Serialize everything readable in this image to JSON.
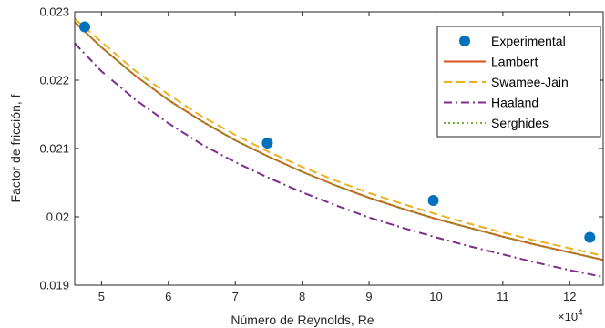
{
  "chart_data": {
    "type": "line",
    "title": "",
    "xlabel": "Número de Reynolds, Re",
    "ylabel": "Factor de fricción, f",
    "x_multiplier_label": "×10",
    "x_multiplier_exp": "4",
    "xlim": [
      4.6,
      12.5
    ],
    "ylim": [
      0.019,
      0.023
    ],
    "x_ticks": [
      5,
      6,
      7,
      8,
      9,
      10,
      11,
      12
    ],
    "y_ticks": [
      0.019,
      0.02,
      0.021,
      0.022,
      0.023
    ],
    "x_tick_labels": [
      "5",
      "6",
      "7",
      "8",
      "9",
      "10",
      "11",
      "12"
    ],
    "y_tick_labels": [
      "0.019",
      "0.02",
      "0.021",
      "0.022",
      "0.023"
    ],
    "grid": false,
    "legend_position": "top-right",
    "experimental": {
      "name": "Experimental",
      "color": "#0072BD",
      "x": [
        4.75,
        7.48,
        9.96,
        12.3
      ],
      "y": [
        0.02278,
        0.02108,
        0.02024,
        0.0197
      ]
    },
    "series": [
      {
        "name": "Lambert",
        "color": "#D95319",
        "dash": "solid",
        "x": [
          4.6,
          5,
          5.5,
          6,
          6.5,
          7,
          7.5,
          8,
          8.5,
          9,
          9.5,
          10,
          10.5,
          11,
          11.5,
          12,
          12.5
        ],
        "y": [
          0.02285,
          0.02248,
          0.02207,
          0.02171,
          0.0214,
          0.02112,
          0.02088,
          0.02066,
          0.02046,
          0.02028,
          0.02012,
          0.01997,
          0.01984,
          0.01971,
          0.01959,
          0.01948,
          0.01937
        ]
      },
      {
        "name": "Swamee-Jain",
        "color": "#EDB120",
        "dash": "dashed",
        "x": [
          4.6,
          5,
          5.5,
          6,
          6.5,
          7,
          7.5,
          8,
          8.5,
          9,
          9.5,
          10,
          10.5,
          11,
          11.5,
          12,
          12.5
        ],
        "y": [
          0.0229,
          0.02256,
          0.02214,
          0.02179,
          0.02147,
          0.0212,
          0.02095,
          0.02073,
          0.02053,
          0.02035,
          0.02019,
          0.02004,
          0.0199,
          0.01977,
          0.01965,
          0.01954,
          0.01943
        ]
      },
      {
        "name": "Haaland",
        "color": "#7E2F8E",
        "dash": "dashdot",
        "x": [
          4.6,
          5,
          5.5,
          6,
          6.5,
          7,
          7.5,
          8,
          8.5,
          9,
          9.5,
          10,
          10.5,
          11,
          11.5,
          12,
          12.5
        ],
        "y": [
          0.02254,
          0.02213,
          0.02172,
          0.02137,
          0.02106,
          0.0208,
          0.02057,
          0.02036,
          0.02017,
          0.01999,
          0.01984,
          0.0197,
          0.01957,
          0.01945,
          0.01933,
          0.01922,
          0.01912
        ]
      },
      {
        "name": "Serghides",
        "color": "#77AC30",
        "dash": "dotted",
        "x": [
          4.6,
          5,
          5.5,
          6,
          6.5,
          7,
          7.5,
          8,
          8.5,
          9,
          9.5,
          10,
          10.5,
          11,
          11.5,
          12,
          12.5
        ],
        "y": [
          0.02285,
          0.02248,
          0.02207,
          0.02171,
          0.0214,
          0.02112,
          0.02088,
          0.02066,
          0.02046,
          0.02028,
          0.02012,
          0.01997,
          0.01984,
          0.01971,
          0.01959,
          0.01948,
          0.01937
        ]
      }
    ]
  }
}
